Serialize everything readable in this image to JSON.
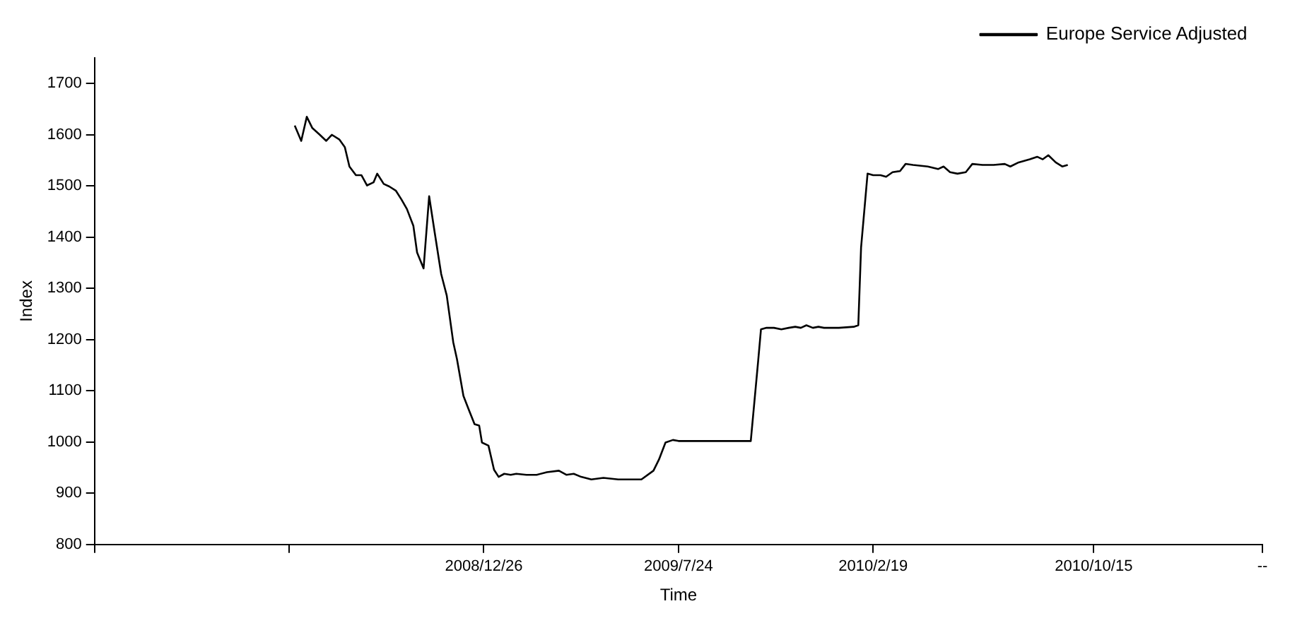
{
  "chart_data": {
    "type": "line",
    "xlabel": "Time",
    "ylabel": "Index",
    "x": [
      "2008-06-05",
      "2008-06-12",
      "2008-06-18",
      "2008-06-24",
      "2008-07-02",
      "2008-07-09",
      "2008-07-15",
      "2008-07-23",
      "2008-07-29",
      "2008-08-03",
      "2008-08-10",
      "2008-08-16",
      "2008-08-22",
      "2008-08-29",
      "2008-09-02",
      "2008-09-09",
      "2008-09-15",
      "2008-09-22",
      "2008-09-28",
      "2008-10-04",
      "2008-10-11",
      "2008-10-15",
      "2008-10-22",
      "2008-10-28",
      "2008-11-03",
      "2008-11-10",
      "2008-11-16",
      "2008-11-23",
      "2008-11-27",
      "2008-12-04",
      "2008-12-10",
      "2008-12-16",
      "2008-12-21",
      "2008-12-24",
      "2008-12-31",
      "2009-01-06",
      "2009-01-11",
      "2009-01-17",
      "2009-01-24",
      "2009-01-30",
      "2009-02-10",
      "2009-02-21",
      "2009-03-04",
      "2009-03-17",
      "2009-03-25",
      "2009-04-02",
      "2009-04-10",
      "2009-04-21",
      "2009-05-04",
      "2009-05-20",
      "2009-06-14",
      "2009-06-27",
      "2009-07-03",
      "2009-07-10",
      "2009-07-18",
      "2009-07-24",
      "2009-08-07",
      "2009-08-23",
      "2009-09-08",
      "2009-09-24",
      "2009-10-10",
      "2009-10-18",
      "2009-10-21",
      "2009-10-27",
      "2009-11-04",
      "2009-11-12",
      "2009-11-20",
      "2009-11-27",
      "2009-12-03",
      "2009-12-09",
      "2009-12-16",
      "2009-12-22",
      "2009-12-28",
      "2010-01-13",
      "2010-01-29",
      "2010-02-03",
      "2010-02-06",
      "2010-02-13",
      "2010-02-19",
      "2010-02-27",
      "2010-03-05",
      "2010-03-12",
      "2010-03-20",
      "2010-03-26",
      "2010-04-03",
      "2010-04-19",
      "2010-04-30",
      "2010-05-06",
      "2010-05-13",
      "2010-05-21",
      "2010-05-30",
      "2010-06-06",
      "2010-06-17",
      "2010-06-29",
      "2010-07-11",
      "2010-07-17",
      "2010-07-26",
      "2010-08-07",
      "2010-08-15",
      "2010-08-21",
      "2010-08-27",
      "2010-09-04",
      "2010-09-11",
      "2010-09-17"
    ],
    "series": [
      {
        "name": "Europe Service Adjusted",
        "color": "#000000",
        "values": [
          1618,
          1588,
          1635,
          1613,
          1600,
          1588,
          1600,
          1591,
          1576,
          1538,
          1521,
          1521,
          1501,
          1507,
          1524,
          1504,
          1499,
          1491,
          1474,
          1455,
          1422,
          1370,
          1339,
          1480,
          1409,
          1328,
          1286,
          1195,
          1162,
          1090,
          1062,
          1035,
          1032,
          999,
          993,
          946,
          932,
          938,
          936,
          938,
          936,
          936,
          941,
          944,
          936,
          938,
          932,
          927,
          930,
          927,
          927,
          944,
          966,
          999,
          1004,
          1002,
          1002,
          1002,
          1002,
          1002,
          1002,
          1159,
          1220,
          1223,
          1223,
          1220,
          1223,
          1225,
          1223,
          1228,
          1223,
          1225,
          1223,
          1223,
          1225,
          1228,
          1380,
          1524,
          1521,
          1521,
          1518,
          1527,
          1529,
          1543,
          1541,
          1538,
          1533,
          1538,
          1527,
          1524,
          1527,
          1543,
          1541,
          1541,
          1543,
          1538,
          1546,
          1552,
          1557,
          1552,
          1560,
          1546,
          1538,
          1541
        ]
      }
    ],
    "xlim": [
      "2007-11-02",
      "2011-04-15"
    ],
    "xticks": [
      {
        "value": "2007-11-02",
        "label": null
      },
      {
        "value": "2008-05-30",
        "label": null
      },
      {
        "value": "2008-12-26",
        "label": "2008/12/26"
      },
      {
        "value": "2009-07-24",
        "label": "2009/7/24"
      },
      {
        "value": "2010-02-19",
        "label": "2010/2/19"
      },
      {
        "value": "2010-10-15",
        "label": "2010/10/15"
      },
      {
        "value": "2011-04-15",
        "label": "--"
      }
    ],
    "ylim": [
      800,
      1750
    ],
    "yticks": [
      800,
      900,
      1000,
      1100,
      1200,
      1300,
      1400,
      1500,
      1600,
      1700
    ],
    "grid": false,
    "legend": "top right",
    "marker": "none",
    "line_style": "solid"
  }
}
